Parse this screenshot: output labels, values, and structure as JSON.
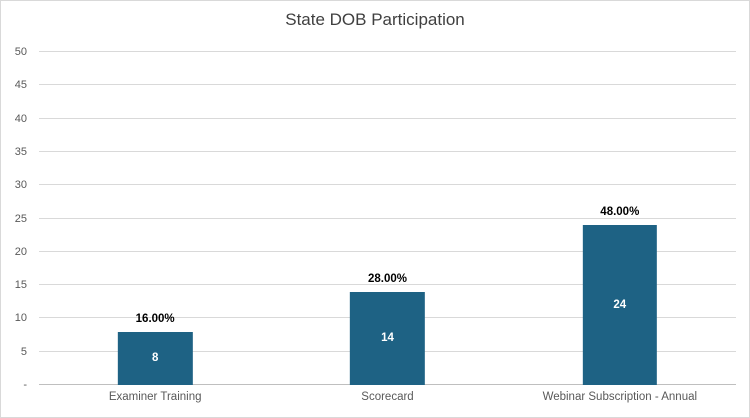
{
  "colors": {
    "bg": "#FFFFFF",
    "border": "#D9D9D9",
    "bar": "#1E6284",
    "grid": "#D9D9D9",
    "axis": "#BFBFBF",
    "title": "#404040",
    "tick": "#595959",
    "label": "#000000",
    "value": "#FFFFFF"
  },
  "chart_data": {
    "type": "bar",
    "title": "State DOB Participation",
    "categories": [
      "Examiner Training",
      "Scorecard",
      "Webinar Subscription - Annual"
    ],
    "values": [
      8,
      14,
      24
    ],
    "inside_labels": [
      "8",
      "14",
      "24"
    ],
    "percent_labels": [
      "16.00%",
      "28.00%",
      "48.00%"
    ],
    "xlabel": "",
    "ylabel": "",
    "ylim": [
      0,
      50
    ],
    "ytick_step": 5,
    "ytick_labels": [
      "-",
      "5",
      "10",
      "15",
      "20",
      "25",
      "30",
      "35",
      "40",
      "45",
      "50"
    ],
    "grid": true,
    "legend": false
  }
}
